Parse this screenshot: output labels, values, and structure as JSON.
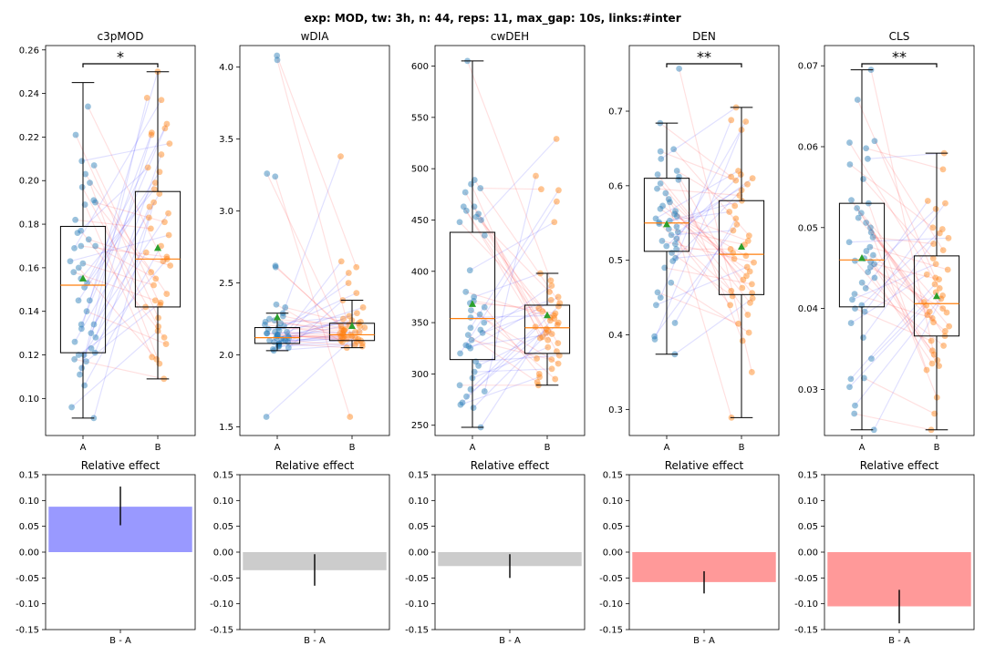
{
  "suptitle": "exp: MOD, tw: 3h, n: 44, reps: 11, max_gap: 10s, links:#inter",
  "colors": {
    "group_a": "#1f77b4",
    "group_b": "#ff7f0e",
    "median": "#ff7f0e",
    "mean_marker": "#2ca02c",
    "link_increase": "#0000ff",
    "link_decrease": "#ff0000",
    "effect_positive": "#9999ff",
    "effect_negative": "#ff9999",
    "effect_neutral": "#cccccc"
  },
  "chart_data": [
    {
      "type": "box",
      "title": "c3pMOD",
      "categories": [
        "A",
        "B"
      ],
      "ylim": [
        0.083,
        0.262
      ],
      "yticks": [
        "0.10",
        "0.12",
        "0.14",
        "0.16",
        "0.18",
        "0.20",
        "0.22",
        "0.24",
        "0.26"
      ],
      "boxes": [
        {
          "name": "A",
          "whisker_low": 0.091,
          "q1": 0.121,
          "median": 0.152,
          "q3": 0.179,
          "whisker_high": 0.245,
          "mean": 0.155
        },
        {
          "name": "B",
          "whisker_low": 0.109,
          "q1": 0.142,
          "median": 0.164,
          "q3": 0.195,
          "whisker_high": 0.25,
          "mean": 0.169
        }
      ],
      "significance": "*",
      "points_a": [
        0.091,
        0.096,
        0.106,
        0.111,
        0.114,
        0.117,
        0.118,
        0.12,
        0.12,
        0.121,
        0.123,
        0.126,
        0.128,
        0.13,
        0.132,
        0.134,
        0.134,
        0.14,
        0.145,
        0.145,
        0.151,
        0.153,
        0.155,
        0.158,
        0.16,
        0.162,
        0.163,
        0.169,
        0.17,
        0.17,
        0.173,
        0.176,
        0.177,
        0.182,
        0.189,
        0.19,
        0.191,
        0.197,
        0.199,
        0.203,
        0.207,
        0.209,
        0.221,
        0.234
      ],
      "points_b": [
        0.109,
        0.116,
        0.118,
        0.119,
        0.125,
        0.128,
        0.131,
        0.133,
        0.137,
        0.142,
        0.143,
        0.144,
        0.145,
        0.148,
        0.152,
        0.155,
        0.158,
        0.161,
        0.163,
        0.164,
        0.165,
        0.167,
        0.17,
        0.175,
        0.178,
        0.181,
        0.183,
        0.185,
        0.188,
        0.19,
        0.194,
        0.196,
        0.199,
        0.204,
        0.206,
        0.212,
        0.217,
        0.221,
        0.222,
        0.224,
        0.226,
        0.237,
        0.238,
        0.25
      ],
      "effect": {
        "value": 0.088,
        "err_low": 0.052,
        "err_high": 0.127,
        "color": "#9999ff"
      }
    },
    {
      "type": "box",
      "title": "wDIA",
      "categories": [
        "A",
        "B"
      ],
      "ylim": [
        1.44,
        4.15
      ],
      "yticks": [
        "1.5",
        "2.0",
        "2.5",
        "3.0",
        "3.5",
        "4.0"
      ],
      "boxes": [
        {
          "name": "A",
          "whisker_low": 2.03,
          "q1": 2.08,
          "median": 2.12,
          "q3": 2.19,
          "whisker_high": 2.29,
          "mean": 2.26
        },
        {
          "name": "B",
          "whisker_low": 2.05,
          "q1": 2.1,
          "median": 2.14,
          "q3": 2.22,
          "whisker_high": 2.38,
          "mean": 2.2
        }
      ],
      "significance": "",
      "points_a": [
        1.57,
        2.03,
        2.04,
        2.05,
        2.06,
        2.06,
        2.07,
        2.08,
        2.08,
        2.09,
        2.09,
        2.1,
        2.1,
        2.11,
        2.11,
        2.12,
        2.12,
        2.13,
        2.13,
        2.14,
        2.14,
        2.15,
        2.15,
        2.16,
        2.16,
        2.17,
        2.18,
        2.19,
        2.2,
        2.21,
        2.22,
        2.23,
        2.24,
        2.25,
        2.27,
        2.29,
        2.33,
        2.35,
        2.61,
        2.62,
        3.24,
        3.26,
        4.05,
        4.08
      ],
      "points_b": [
        1.57,
        2.05,
        2.06,
        2.07,
        2.08,
        2.09,
        2.09,
        2.1,
        2.1,
        2.11,
        2.11,
        2.12,
        2.12,
        2.13,
        2.13,
        2.13,
        2.14,
        2.14,
        2.15,
        2.15,
        2.16,
        2.16,
        2.17,
        2.17,
        2.18,
        2.19,
        2.2,
        2.2,
        2.21,
        2.22,
        2.23,
        2.24,
        2.25,
        2.27,
        2.29,
        2.33,
        2.38,
        2.43,
        2.5,
        2.57,
        2.61,
        2.65,
        3.38,
        2.18
      ],
      "effect": {
        "value": -0.035,
        "err_low": -0.065,
        "err_high": -0.004,
        "color": "#cccccc"
      }
    },
    {
      "type": "box",
      "title": "cwDEH",
      "categories": [
        "A",
        "B"
      ],
      "ylim": [
        240,
        620
      ],
      "yticks": [
        "250",
        "300",
        "350",
        "400",
        "450",
        "500",
        "550",
        "600"
      ],
      "boxes": [
        {
          "name": "A",
          "whisker_low": 248,
          "q1": 314,
          "median": 354,
          "q3": 438,
          "whisker_high": 605,
          "mean": 368
        },
        {
          "name": "B",
          "whisker_low": 289,
          "q1": 320,
          "median": 345,
          "q3": 367,
          "whisker_high": 398,
          "mean": 357
        }
      ],
      "significance": "",
      "points_a": [
        248,
        267,
        270,
        272,
        278,
        283,
        285,
        289,
        296,
        302,
        308,
        312,
        320,
        325,
        327,
        328,
        333,
        338,
        340,
        343,
        345,
        350,
        355,
        358,
        362,
        365,
        369,
        371,
        375,
        380,
        401,
        435,
        448,
        450,
        453,
        456,
        459,
        463,
        477,
        481,
        485,
        489,
        605,
        463
      ],
      "points_b": [
        289,
        292,
        295,
        297,
        300,
        305,
        310,
        314,
        318,
        322,
        326,
        330,
        333,
        336,
        339,
        342,
        344,
        346,
        348,
        350,
        352,
        354,
        355,
        357,
        359,
        361,
        364,
        366,
        369,
        372,
        375,
        380,
        386,
        391,
        398,
        448,
        468,
        479,
        480,
        493,
        529,
        340,
        315,
        335
      ],
      "effect": {
        "value": -0.027,
        "err_low": -0.05,
        "err_high": -0.004,
        "color": "#cccccc"
      }
    },
    {
      "type": "box",
      "title": "DEN",
      "categories": [
        "A",
        "B"
      ],
      "ylim": [
        0.265,
        0.788
      ],
      "yticks": [
        "0.3",
        "0.4",
        "0.5",
        "0.6",
        "0.7"
      ],
      "boxes": [
        {
          "name": "A",
          "whisker_low": 0.374,
          "q1": 0.512,
          "median": 0.55,
          "q3": 0.61,
          "whisker_high": 0.684,
          "mean": 0.548
        },
        {
          "name": "B",
          "whisker_low": 0.289,
          "q1": 0.454,
          "median": 0.508,
          "q3": 0.58,
          "whisker_high": 0.705,
          "mean": 0.518
        }
      ],
      "significance": "**",
      "points_a": [
        0.374,
        0.394,
        0.398,
        0.416,
        0.44,
        0.45,
        0.457,
        0.47,
        0.49,
        0.499,
        0.503,
        0.51,
        0.515,
        0.519,
        0.522,
        0.526,
        0.529,
        0.534,
        0.538,
        0.542,
        0.545,
        0.549,
        0.551,
        0.553,
        0.556,
        0.559,
        0.562,
        0.566,
        0.569,
        0.573,
        0.578,
        0.582,
        0.59,
        0.596,
        0.603,
        0.608,
        0.612,
        0.615,
        0.62,
        0.636,
        0.646,
        0.649,
        0.684,
        0.757
      ],
      "points_b": [
        0.289,
        0.35,
        0.392,
        0.403,
        0.415,
        0.427,
        0.44,
        0.443,
        0.449,
        0.452,
        0.456,
        0.459,
        0.463,
        0.468,
        0.474,
        0.479,
        0.485,
        0.491,
        0.497,
        0.502,
        0.506,
        0.51,
        0.515,
        0.521,
        0.526,
        0.533,
        0.54,
        0.548,
        0.556,
        0.565,
        0.573,
        0.58,
        0.587,
        0.594,
        0.602,
        0.607,
        0.61,
        0.612,
        0.615,
        0.62,
        0.675,
        0.686,
        0.688,
        0.705
      ],
      "effect": {
        "value": -0.058,
        "err_low": -0.08,
        "err_high": -0.037,
        "color": "#ff9999"
      }
    },
    {
      "type": "box",
      "title": "CLS",
      "categories": [
        "A",
        "B"
      ],
      "ylim": [
        0.0243,
        0.0725
      ],
      "yticks": [
        "0.03",
        "0.04",
        "0.05",
        "0.06",
        "0.07"
      ],
      "boxes": [
        {
          "name": "A",
          "whisker_low": 0.025,
          "q1": 0.0402,
          "median": 0.046,
          "q3": 0.053,
          "whisker_high": 0.0695,
          "mean": 0.0462
        },
        {
          "name": "B",
          "whisker_low": 0.025,
          "q1": 0.0366,
          "median": 0.0406,
          "q3": 0.0465,
          "whisker_high": 0.0592,
          "mean": 0.0415
        }
      ],
      "significance": "**",
      "points_a": [
        0.025,
        0.027,
        0.028,
        0.0303,
        0.0313,
        0.0314,
        0.0338,
        0.0364,
        0.0382,
        0.0396,
        0.04,
        0.0404,
        0.0411,
        0.0418,
        0.0425,
        0.0432,
        0.0438,
        0.0445,
        0.0451,
        0.0455,
        0.0459,
        0.0462,
        0.0466,
        0.0471,
        0.0476,
        0.0482,
        0.0488,
        0.0494,
        0.05,
        0.0506,
        0.0512,
        0.0518,
        0.0524,
        0.053,
        0.0534,
        0.056,
        0.0578,
        0.0585,
        0.0598,
        0.0605,
        0.0607,
        0.0658,
        0.0695,
        0.0458
      ],
      "points_b": [
        0.025,
        0.027,
        0.029,
        0.0324,
        0.0329,
        0.0332,
        0.0336,
        0.0343,
        0.0348,
        0.0354,
        0.036,
        0.0366,
        0.0372,
        0.0378,
        0.0383,
        0.0388,
        0.0392,
        0.0396,
        0.04,
        0.0404,
        0.0408,
        0.0412,
        0.0416,
        0.042,
        0.0425,
        0.043,
        0.0436,
        0.0442,
        0.0448,
        0.0455,
        0.0462,
        0.0472,
        0.048,
        0.0487,
        0.0493,
        0.0498,
        0.05,
        0.0523,
        0.053,
        0.0533,
        0.0572,
        0.0592,
        0.0438,
        0.0395
      ],
      "effect": {
        "value": -0.105,
        "err_low": -0.138,
        "err_high": -0.073,
        "color": "#ff9999"
      }
    }
  ],
  "effect_panels": {
    "title": "Relative effect",
    "category": "B - A",
    "ylim": [
      -0.15,
      0.15
    ],
    "yticks": [
      "-0.15",
      "-0.10",
      "-0.05",
      "0.00",
      "0.05",
      "0.10",
      "0.15"
    ]
  }
}
